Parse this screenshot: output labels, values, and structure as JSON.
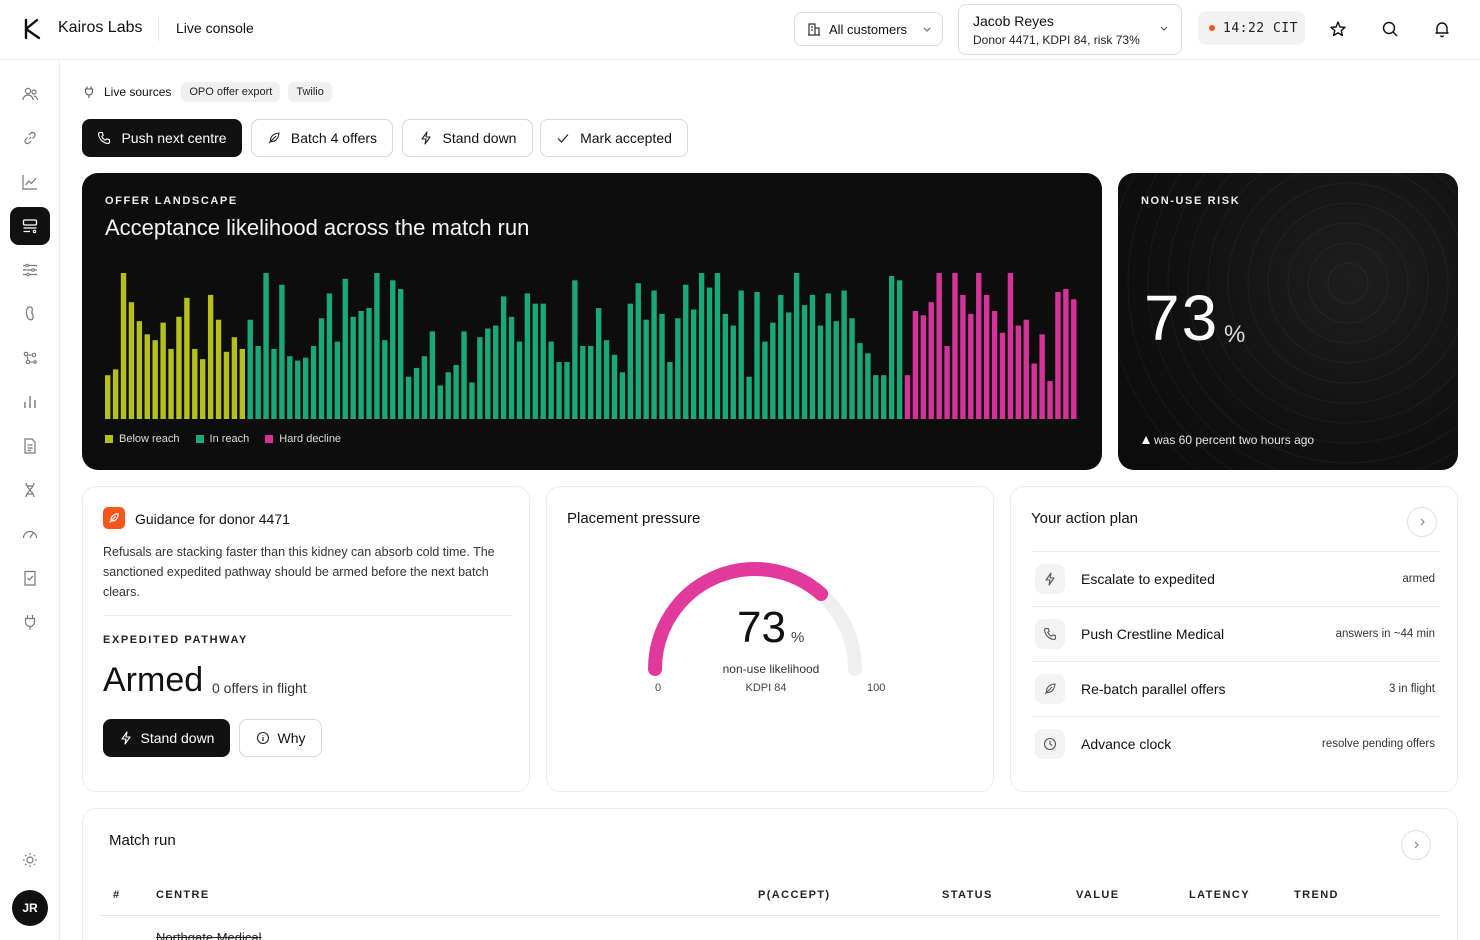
{
  "header": {
    "brand": "Kairos Labs",
    "page": "Live console",
    "customer_select": "All customers",
    "patient": {
      "name": "Jacob Reyes",
      "detail": "Donor 4471, KDPI 84, risk 73%"
    },
    "clock": "14:22 CIT",
    "accent": "#f2561d",
    "icons": [
      "star-icon",
      "search-icon",
      "bell-icon"
    ]
  },
  "sidebar": {
    "items": [
      "users-icon",
      "link-icon",
      "trend-icon",
      "console-icon",
      "sliders-icon",
      "kidney-icon",
      "network-icon",
      "bar-chart-icon",
      "document-icon",
      "dna-icon",
      "gauge-icon",
      "checklist-icon",
      "plug-icon"
    ],
    "active_index": 3,
    "settings_icon": "sun-icon",
    "avatar": "JR"
  },
  "sources": {
    "title": "Live sources",
    "chips": [
      "OPO offer export",
      "Twilio"
    ]
  },
  "actions": {
    "push": "Push next centre",
    "batch": "Batch 4 offers",
    "stand_down": "Stand down",
    "mark_accepted": "Mark accepted"
  },
  "landscape": {
    "eyebrow": "OFFER LANDSCAPE",
    "title": "Acceptance likelihood across the match run",
    "legend": [
      {
        "label": "Below reach",
        "color": "#b5c11a"
      },
      {
        "label": "In reach",
        "color": "#19a877"
      },
      {
        "label": "Hard decline",
        "color": "#d6339a"
      }
    ]
  },
  "chart_data": {
    "type": "bar",
    "ylim": [
      0,
      100
    ],
    "series": [
      {
        "name": "Below reach",
        "color": "#b5c11a",
        "values": [
          30,
          34,
          100,
          80,
          67,
          58,
          54,
          66,
          48,
          70,
          83,
          48,
          41,
          85,
          68,
          46,
          56,
          48
        ]
      },
      {
        "name": "In reach",
        "color": "#19a877",
        "values": [
          68,
          50,
          100,
          48,
          92,
          43,
          40,
          42,
          50,
          69,
          86,
          53,
          96,
          70,
          74,
          76,
          100,
          54,
          95,
          89,
          29,
          35,
          43,
          60,
          23,
          32,
          37,
          60,
          25,
          56,
          62,
          64,
          84,
          70,
          53,
          86,
          79,
          79,
          53,
          39,
          39,
          95,
          50,
          50,
          76,
          54,
          44,
          32,
          79,
          93,
          68,
          88,
          72,
          39,
          69,
          92,
          75,
          100,
          90,
          100,
          72,
          64,
          88,
          29,
          87,
          53,
          66,
          85,
          73,
          100,
          78,
          85,
          64,
          86,
          67,
          88,
          69,
          52,
          45,
          30,
          30,
          98,
          95
        ]
      },
      {
        "name": "Hard decline",
        "color": "#d6339a",
        "values": [
          30,
          74,
          71,
          80,
          100,
          50,
          100,
          85,
          72,
          100,
          85,
          74,
          59,
          100,
          64,
          68,
          38,
          58,
          26,
          87,
          89,
          82
        ]
      }
    ]
  },
  "risk": {
    "eyebrow": "NON-USE RISK",
    "value": "73",
    "unit": "%",
    "note": "was 60 percent two hours ago",
    "note_icon": "arrow-up-icon"
  },
  "guidance": {
    "title": "Guidance for donor 4471",
    "body": "Refusals are stacking faster than this kidney can absorb cold time. The sanctioned expedited pathway should be armed before the next batch clears.",
    "eyebrow": "EXPEDITED PATHWAY",
    "status": "Armed",
    "sub": "0 offers in flight",
    "stand_down": "Stand down",
    "why": "Why"
  },
  "pressure": {
    "title": "Placement pressure",
    "value": "73",
    "unit": "%",
    "label": "non-use likelihood",
    "sub": "KDPI 84",
    "min": "0",
    "max": "100",
    "fraction": 0.73,
    "color": "#e23a9c"
  },
  "plan": {
    "title": "Your action plan",
    "rows": [
      {
        "icon": "bolt-icon",
        "label": "Escalate to expedited",
        "meta": "armed"
      },
      {
        "icon": "phone-icon",
        "label": "Push Crestline Medical",
        "meta": "answers in ~44 min"
      },
      {
        "icon": "feather-icon",
        "label": "Re-batch parallel offers",
        "meta": "3 in flight"
      },
      {
        "icon": "clock-icon",
        "label": "Advance clock",
        "meta": "resolve pending offers"
      }
    ]
  },
  "match_run": {
    "title": "Match run",
    "columns": [
      "#",
      "CENTRE",
      "P(ACCEPT)",
      "STATUS",
      "VALUE",
      "LATENCY",
      "TREND"
    ],
    "rows": [
      {
        "centre": "Northgate Medical"
      }
    ]
  }
}
